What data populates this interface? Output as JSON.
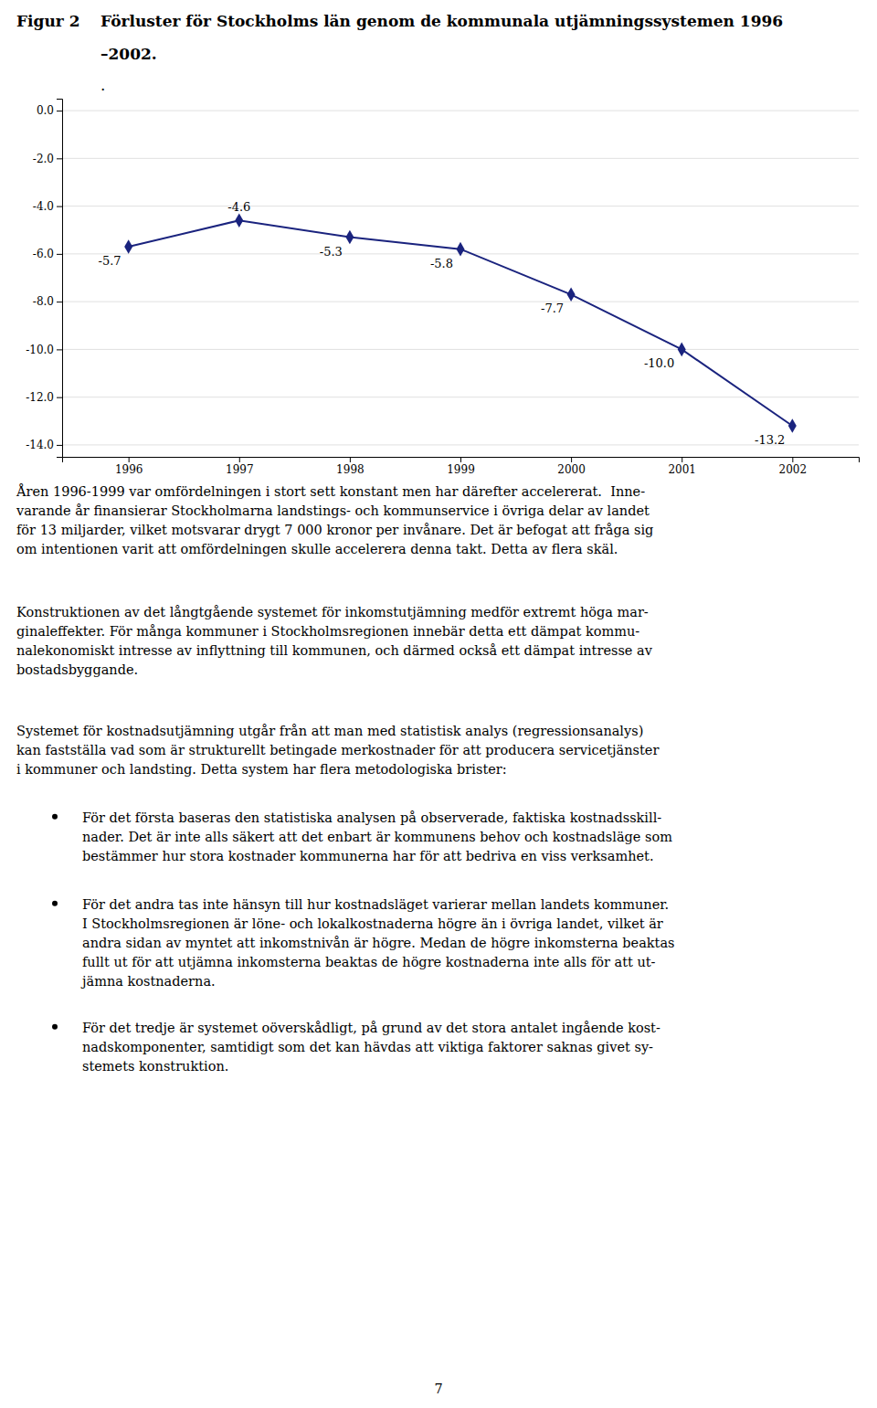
{
  "chart_data": {
    "type": "line",
    "title": "Förluster för Stockholms län genom de kommunala utjämningssystemen 1996\n–2002.",
    "x": [
      1996,
      1997,
      1998,
      1999,
      2000,
      2001,
      2002
    ],
    "values": [
      -5.7,
      -4.6,
      -5.3,
      -5.8,
      -7.7,
      -10.0,
      -13.2
    ],
    "value_labels": [
      "-5.7",
      "-4.6",
      "-5.3",
      "-5.8",
      "-7.7",
      "-10.0",
      "-13.2"
    ],
    "data_labels": true,
    "color": "#1a237e",
    "marker": "diamond",
    "xlim": [
      1995.4,
      2002.6
    ],
    "xticks": [
      1996,
      1997,
      1998,
      1999,
      2000,
      2001,
      2002
    ],
    "ylim": [
      -14.5,
      0.5
    ],
    "yticks": [
      {
        "value": 0.0,
        "label": "0.0"
      },
      {
        "value": -2.0,
        "label": "-2.0"
      },
      {
        "value": -4.0,
        "label": "-4.0"
      },
      {
        "value": -6.0,
        "label": "-6.0"
      },
      {
        "value": -8.0,
        "label": "-8.0"
      },
      {
        "value": -10.0,
        "label": "-10.0"
      },
      {
        "value": -12.0,
        "label": "-12.0"
      },
      {
        "value": -14.0,
        "label": "-14.0"
      }
    ],
    "grid": true,
    "annotations": [
      "Figur 2",
      ".",
      "Åren 1996-1999 var omfördelningen i stort sett konstant men har därefter accelererat.  Inne-\nvarande år finansierar Stockholmarna landstings- och kommunservice i övriga delar av landet\nför 13 miljarder, vilket motsvarar drygt 7 000 kronor per invånare. Det är befogat att fråga sig\nom intentionen varit att omfördelningen skulle accelerera denna takt. Detta av flera skäl.",
      "Konstruktionen av det långtgående systemet för inkomstutjämning medför extremt höga mar-\nginaleffekter. För många kommuner i Stockholmsregionen innebär detta ett dämpat kommu-\nnalekonomiskt intresse av inflyttning till kommunen, och därmed också ett dämpat intresse av\nbostadsbyggande.",
      "Systemet för kostnadsutjämning utgår från att man med statistisk analys (regressionsanalys)\nkan fastställa vad som är strukturellt betingade merkostnader för att producera servicetjänster\ni kommuner och landsting. Detta system har flera metodologiska brister:",
      "För det första baseras den statistiska analysen på observerade, faktiska kostnadsskill-\nnader. Det är inte alls säkert att det enbart är kommunens behov och kostnadsläge som\nbestämmer hur stora kostnader kommunerna har för att bedriva en viss verksamhet.",
      "För det andra tas inte hänsyn till hur kostnadsläget varierar mellan landets kommuner.\nI Stockholmsregionen är löne- och lokalkostnaderna högre än i övriga landet, vilket är\nandra sidan av myntet att inkomstnivån är högre. Medan de högre inkomsterna beaktas\nfullt ut för att utjämna inkomsterna beaktas de högre kostnaderna inte alls för att ut-\njämna kostnaderna.",
      "För det tredje är systemet oöverskådligt, på grund av det stora antalet ingående kost-\nnadskomponenter, samtidigt som det kan hävdas att viktiga faktorer saknas givet sy-\nstemet­s konstruktion.",
      "7"
    ]
  }
}
